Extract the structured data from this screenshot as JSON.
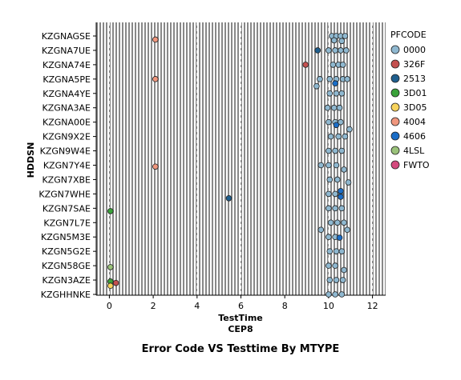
{
  "chart_data": {
    "type": "scatter",
    "title": "Error Code VS Testtime By MTYPE",
    "xlabel": "TestTime",
    "xsublabel": "CEP8",
    "ylabel": "HDDSN",
    "xlim": [
      -0.6,
      12.6
    ],
    "xticks": [
      0,
      2,
      4,
      6,
      8,
      10,
      12
    ],
    "categories": [
      "KZGNAGSE",
      "KZGNA7UE",
      "KZGNA74E",
      "KZGNA5PE",
      "KZGNA4YE",
      "KZGNA3AE",
      "KZGNA00E",
      "KZGN9X2E",
      "KZGN9W4E",
      "KZGN7Y4E",
      "KZGN7XBE",
      "KZGN7WHE",
      "KZGN7SAE",
      "KZGN7L7E",
      "KZGN5M3E",
      "KZGN5G2E",
      "KZGN58GE",
      "KZGN3AZE",
      "KZGHHNKE"
    ],
    "legend_title": "PFCODE",
    "legend_position": "right",
    "series": [
      {
        "name": "0000",
        "color": "#8fb8d0",
        "points": [
          [
            10.15,
            0
          ],
          [
            10.35,
            0
          ],
          [
            10.55,
            0
          ],
          [
            10.75,
            0
          ],
          [
            10.25,
            0.3
          ],
          [
            10.6,
            0.35
          ],
          [
            10.0,
            1
          ],
          [
            10.3,
            1
          ],
          [
            10.55,
            1
          ],
          [
            10.8,
            1
          ],
          [
            10.2,
            2
          ],
          [
            10.45,
            2
          ],
          [
            10.65,
            2
          ],
          [
            9.6,
            3
          ],
          [
            9.45,
            3.5
          ],
          [
            10.05,
            3
          ],
          [
            10.35,
            3
          ],
          [
            10.65,
            3
          ],
          [
            10.85,
            3
          ],
          [
            10.05,
            4
          ],
          [
            10.35,
            4
          ],
          [
            10.6,
            4
          ],
          [
            9.95,
            5
          ],
          [
            10.25,
            5
          ],
          [
            10.5,
            5
          ],
          [
            10.0,
            6
          ],
          [
            10.3,
            6
          ],
          [
            10.55,
            6
          ],
          [
            10.1,
            7
          ],
          [
            10.45,
            7
          ],
          [
            10.75,
            7
          ],
          [
            10.95,
            6.5
          ],
          [
            10.0,
            8
          ],
          [
            10.3,
            8
          ],
          [
            10.6,
            8
          ],
          [
            9.65,
            9
          ],
          [
            10.0,
            9
          ],
          [
            10.35,
            9
          ],
          [
            10.7,
            9.3
          ],
          [
            10.05,
            10
          ],
          [
            10.4,
            10
          ],
          [
            10.9,
            10.2
          ],
          [
            10.0,
            11
          ],
          [
            10.3,
            11
          ],
          [
            10.55,
            11
          ],
          [
            10.0,
            12
          ],
          [
            10.3,
            12
          ],
          [
            10.6,
            12
          ],
          [
            10.1,
            13
          ],
          [
            10.4,
            13
          ],
          [
            10.7,
            13
          ],
          [
            9.65,
            13.5
          ],
          [
            10.0,
            14
          ],
          [
            10.3,
            14
          ],
          [
            10.85,
            13.5
          ],
          [
            10.05,
            15
          ],
          [
            10.35,
            15
          ],
          [
            10.6,
            15
          ],
          [
            10.0,
            16
          ],
          [
            10.3,
            16
          ],
          [
            10.7,
            16.3
          ],
          [
            10.05,
            17
          ],
          [
            10.35,
            17
          ],
          [
            10.65,
            17
          ],
          [
            10.0,
            18
          ],
          [
            10.3,
            18
          ],
          [
            10.6,
            18
          ]
        ]
      },
      {
        "name": "326F",
        "color": "#c4504f",
        "points": [
          [
            8.95,
            2
          ],
          [
            0.3,
            17.2
          ]
        ]
      },
      {
        "name": "2513",
        "color": "#1f5f8e",
        "points": [
          [
            9.5,
            1
          ],
          [
            5.45,
            11.3
          ]
        ]
      },
      {
        "name": "3D01",
        "color": "#3aa23a",
        "points": [
          [
            0.05,
            12.2
          ],
          [
            0.05,
            17.1
          ]
        ]
      },
      {
        "name": "3D05",
        "color": "#f7d35c",
        "points": [
          [
            0.05,
            17.4
          ]
        ]
      },
      {
        "name": "4004",
        "color": "#f0977e",
        "points": [
          [
            2.1,
            0.25
          ],
          [
            2.1,
            3
          ],
          [
            2.1,
            9.1
          ]
        ]
      },
      {
        "name": "4606",
        "color": "#1a6dc7",
        "points": [
          [
            10.35,
            6.2
          ],
          [
            10.55,
            10.8
          ],
          [
            10.55,
            11.2
          ],
          [
            10.5,
            14.05
          ],
          [
            10.3,
            3.3
          ]
        ]
      },
      {
        "name": "4LSL",
        "color": "#9ac27a",
        "points": [
          [
            0.05,
            16.1
          ]
        ]
      },
      {
        "name": "FWTO",
        "color": "#d44a7e",
        "points": []
      }
    ]
  }
}
